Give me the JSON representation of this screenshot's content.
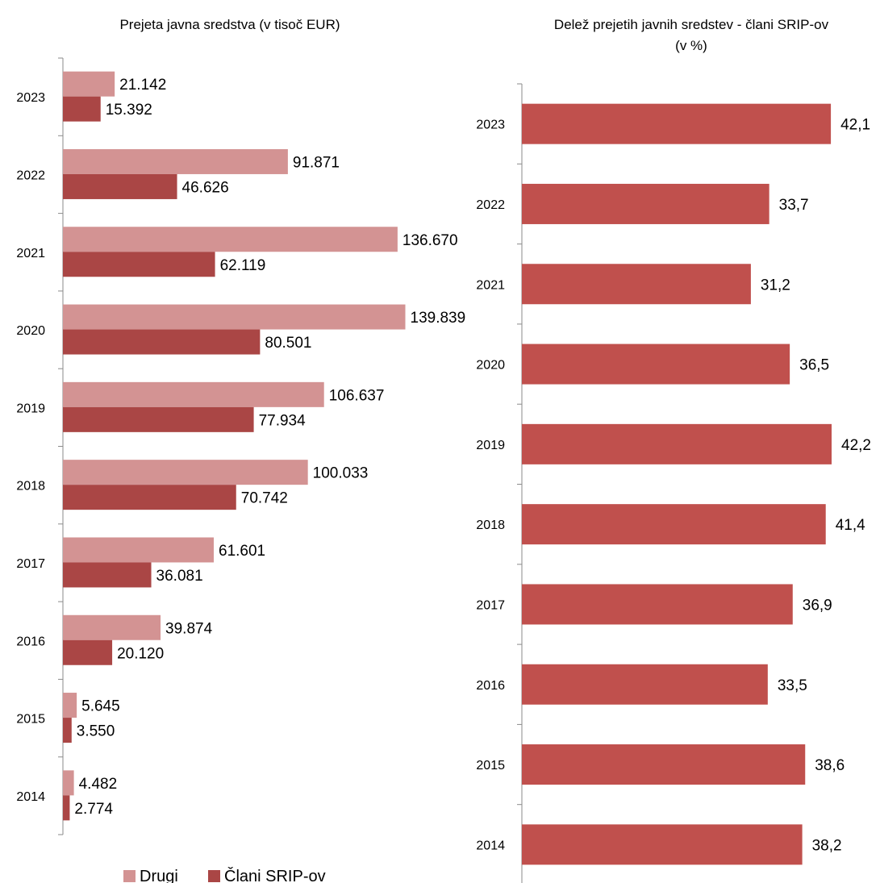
{
  "chart_data": [
    {
      "type": "bar",
      "orientation": "horizontal",
      "title": "Prejeta javna sredstva (v tisoč EUR)",
      "categories": [
        "2023",
        "2022",
        "2021",
        "2020",
        "2019",
        "2018",
        "2017",
        "2016",
        "2015",
        "2014"
      ],
      "series": [
        {
          "name": "Drugi",
          "color": "#D39393",
          "values": [
            21142,
            91871,
            136670,
            139839,
            106637,
            100033,
            61601,
            39874,
            5645,
            4482
          ],
          "labels": [
            "21.142",
            "91.871",
            "136.670",
            "139.839",
            "106.637",
            "100.033",
            "61.601",
            "39.874",
            "5.645",
            "4.482"
          ]
        },
        {
          "name": "Člani SRIP-ov",
          "color": "#AA4645",
          "values": [
            15392,
            46626,
            62119,
            80501,
            77934,
            70742,
            36081,
            20120,
            3550,
            2774
          ],
          "labels": [
            "15.392",
            "46.626",
            "62.119",
            "80.501",
            "77.934",
            "70.742",
            "36.081",
            "20.120",
            "3.550",
            "2.774"
          ]
        }
      ],
      "xlim": [
        0,
        140000
      ],
      "grid": false,
      "legend": "bottom"
    },
    {
      "type": "bar",
      "orientation": "horizontal",
      "title": "Delež prejetih javnih sredstev - člani SRIP-ov",
      "subtitle": "(v %)",
      "categories": [
        "2023",
        "2022",
        "2021",
        "2020",
        "2019",
        "2018",
        "2017",
        "2016",
        "2015",
        "2014"
      ],
      "series": [
        {
          "color": "#C0504D",
          "values": [
            42.1,
            33.7,
            31.2,
            36.5,
            42.2,
            41.4,
            36.9,
            33.5,
            38.6,
            38.2
          ],
          "labels": [
            "42,1",
            "33,7",
            "31,2",
            "36,5",
            "42,2",
            "41,4",
            "36,9",
            "33,5",
            "38,6",
            "38,2"
          ]
        }
      ],
      "xlim": [
        0,
        42.2
      ],
      "grid": false,
      "legend": "none"
    }
  ]
}
